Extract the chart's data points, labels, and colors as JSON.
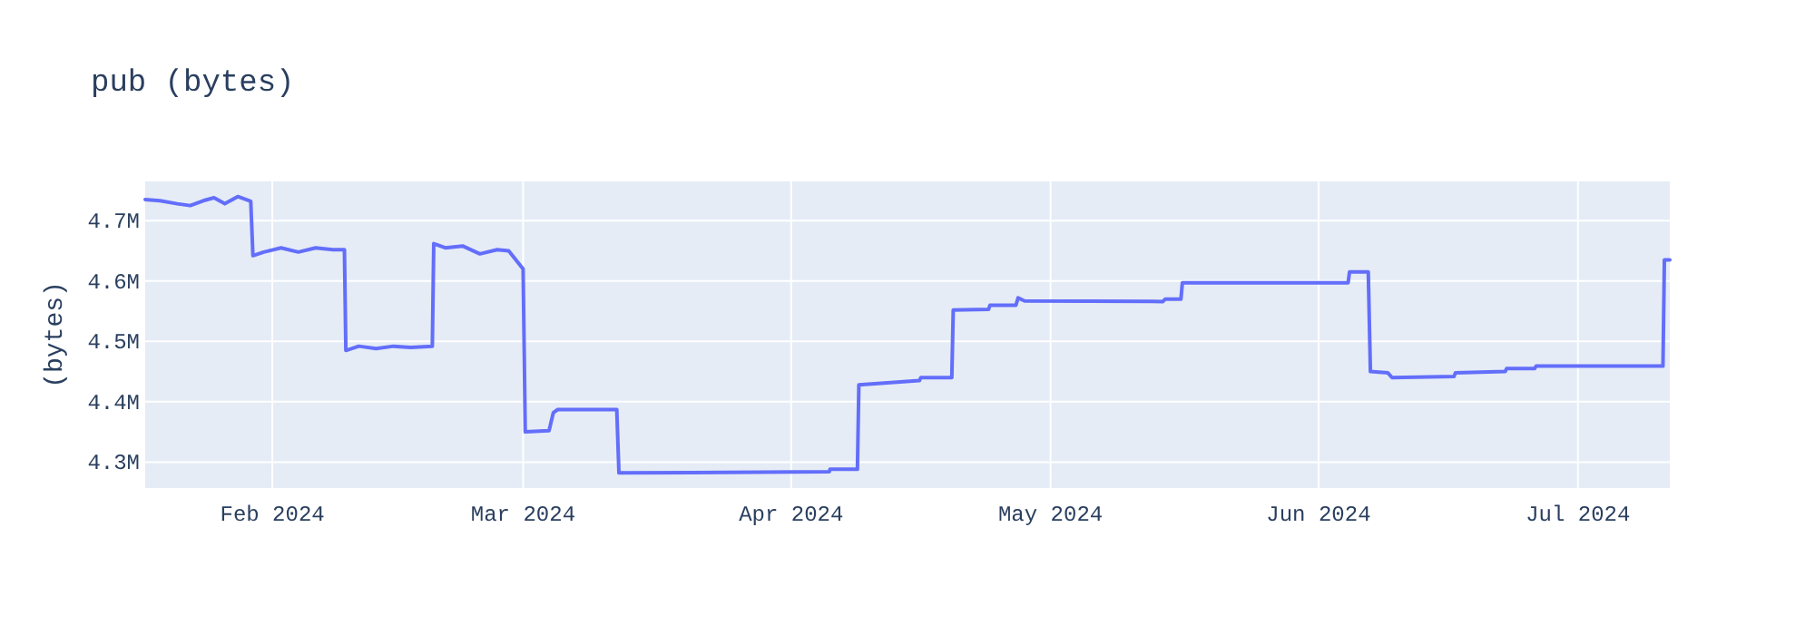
{
  "chart_data": {
    "type": "line",
    "title": "pub (bytes)",
    "ylabel": "(bytes)",
    "x": [
      "2024-01-17T07:00",
      "2024-01-19",
      "2024-01-21",
      "2024-01-22T12:00",
      "2024-01-24",
      "2024-01-25T06:00",
      "2024-01-26T12:00",
      "2024-01-28",
      "2024-01-29T12:00",
      "2024-01-29T18:00",
      "2024-01-31",
      "2024-02-02",
      "2024-02-04",
      "2024-02-06",
      "2024-02-08",
      "2024-02-09T08:00",
      "2024-02-09T12:00",
      "2024-02-11",
      "2024-02-13",
      "2024-02-15",
      "2024-02-17",
      "2024-02-19T12:00",
      "2024-02-19T16:00",
      "2024-02-21",
      "2024-02-23",
      "2024-02-25",
      "2024-02-27",
      "2024-02-28T08:00",
      "2024-03-01T00:00",
      "2024-03-01T06:00",
      "2024-03-04T00:00",
      "2024-03-04T12:00",
      "2024-03-05T00:00",
      "2024-03-11T20:00",
      "2024-03-12T02:00",
      "2024-04-05T10:00",
      "2024-04-05T12:00",
      "2024-04-08T16:00",
      "2024-04-08T20:00",
      "2024-04-15T20:00",
      "2024-04-16T00:00",
      "2024-04-19T14:00",
      "2024-04-19T18:00",
      "2024-04-23T20:00",
      "2024-04-24T00:00",
      "2024-04-27T00:00",
      "2024-04-27T06:00",
      "2024-04-28T00:00",
      "2024-05-14T00:00",
      "2024-05-14T06:00",
      "2024-05-16T02:00",
      "2024-05-16T06:00",
      "2024-06-04T10:00",
      "2024-06-04T14:00",
      "2024-06-06T18:00",
      "2024-06-07T00:00",
      "2024-06-09T00:00",
      "2024-06-09T12:00",
      "2024-06-16T16:00",
      "2024-06-16T20:00",
      "2024-06-22T14:00",
      "2024-06-22T18:00",
      "2024-06-26T00:00",
      "2024-06-26T04:00",
      "2024-07-10T20:00",
      "2024-07-11T00:00",
      "2024-07-11T15:00"
    ],
    "series": [
      {
        "color": "#636efa",
        "values": [
          4735000,
          4733000,
          4728000,
          4725000,
          4733000,
          4738000,
          4728000,
          4740000,
          4732000,
          4642000,
          4648000,
          4655000,
          4648000,
          4655000,
          4652000,
          4652000,
          4485000,
          4492000,
          4488000,
          4492000,
          4490000,
          4492000,
          4662000,
          4655000,
          4658000,
          4645000,
          4652000,
          4650000,
          4620000,
          4350000,
          4352000,
          4382000,
          4387000,
          4387000,
          4282000,
          4284000,
          4288000,
          4288000,
          4428000,
          4435000,
          4440000,
          4440000,
          4552000,
          4553000,
          4560000,
          4560000,
          4572000,
          4567000,
          4566000,
          4570000,
          4570000,
          4597000,
          4597000,
          4615000,
          4615000,
          4450000,
          4448000,
          4440000,
          4442000,
          4448000,
          4450000,
          4455000,
          4455000,
          4459000,
          4459000,
          4635000,
          4635000
        ]
      }
    ],
    "xlim": [
      "2024-01-17T07:00",
      "2024-07-11T15:00"
    ],
    "xticks": [
      {
        "value": "2024-02-01",
        "label": "Feb 2024"
      },
      {
        "value": "2024-03-01",
        "label": "Mar 2024"
      },
      {
        "value": "2024-04-01",
        "label": "Apr 2024"
      },
      {
        "value": "2024-05-01",
        "label": "May 2024"
      },
      {
        "value": "2024-06-01",
        "label": "Jun 2024"
      },
      {
        "value": "2024-07-01",
        "label": "Jul 2024"
      }
    ],
    "ylim": [
      4257000,
      4765000
    ],
    "yticks": [
      {
        "value": 4300000,
        "label": "4.3M"
      },
      {
        "value": 4400000,
        "label": "4.4M"
      },
      {
        "value": 4500000,
        "label": "4.5M"
      },
      {
        "value": 4600000,
        "label": "4.6M"
      },
      {
        "value": 4700000,
        "label": "4.7M"
      }
    ],
    "grid": true,
    "line_style": "solid"
  }
}
